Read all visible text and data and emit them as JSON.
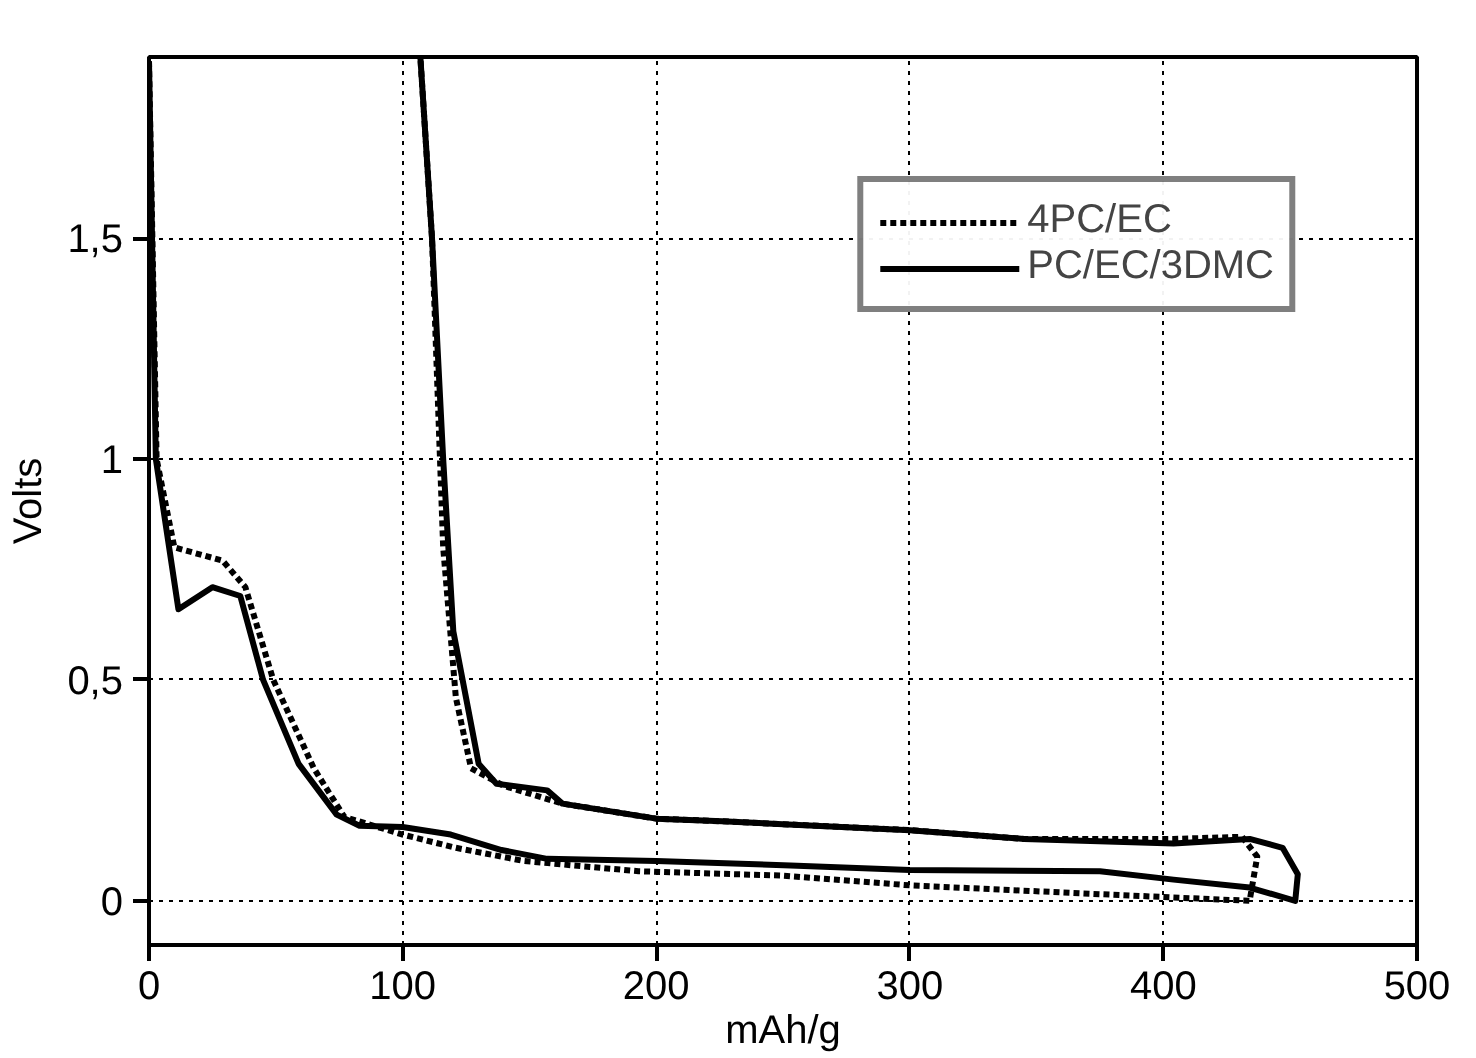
{
  "chart_data": {
    "type": "line",
    "xlabel": "mAh/g",
    "ylabel": "Volts",
    "xlim": [
      0,
      500
    ],
    "ylim": [
      -0.1,
      1.91
    ],
    "xticks": [
      0,
      100,
      200,
      300,
      400,
      500
    ],
    "yticks": [
      0,
      {
        "value": 0.5,
        "label": "0,5"
      },
      1,
      {
        "value": 1.5,
        "label": "1,5"
      }
    ],
    "grid": true,
    "legend": "top right",
    "marker": "none",
    "series": [
      {
        "name": "4PC/EC",
        "color": "#000000",
        "line_style": "dotted",
        "x": [
          0,
          3,
          10,
          29,
          38,
          49,
          65,
          77,
          100,
          121,
          148,
          193,
          250,
          300,
          375,
          434,
          437,
          431,
          404,
          345,
          300,
          226,
          200,
          163,
          140,
          127,
          121,
          116,
          111.6,
          107
        ],
        "values": [
          1.9,
          1.0,
          0.8,
          0.77,
          0.71,
          0.5,
          0.3,
          0.19,
          0.15,
          0.12,
          0.09,
          0.067,
          0.057,
          0.035,
          0.015,
          0,
          0.1,
          0.145,
          0.14,
          0.14,
          0.16,
          0.18,
          0.186,
          0.22,
          0.26,
          0.3,
          0.46,
          0.8,
          1.5,
          1.91
        ]
      },
      {
        "name": "PC/EC/3DMC",
        "color": "#000000",
        "line_style": "solid",
        "x": [
          0,
          2.7,
          11.6,
          25,
          36,
          45,
          59,
          74,
          83,
          100,
          119,
          139,
          157,
          200,
          253,
          300,
          375,
          404,
          434,
          452,
          453,
          447,
          434,
          404,
          345,
          300,
          226,
          200,
          163,
          157,
          137,
          130,
          125,
          120,
          116,
          111.6,
          107
        ],
        "values": [
          1.9,
          1.0,
          0.66,
          0.71,
          0.69,
          0.5,
          0.31,
          0.195,
          0.17,
          0.167,
          0.15,
          0.115,
          0.095,
          0.09,
          0.08,
          0.07,
          0.067,
          0.048,
          0.03,
          0,
          0.06,
          0.12,
          0.14,
          0.13,
          0.14,
          0.16,
          0.18,
          0.186,
          0.22,
          0.25,
          0.265,
          0.31,
          0.46,
          0.61,
          1.0,
          1.5,
          1.91
        ]
      }
    ]
  }
}
